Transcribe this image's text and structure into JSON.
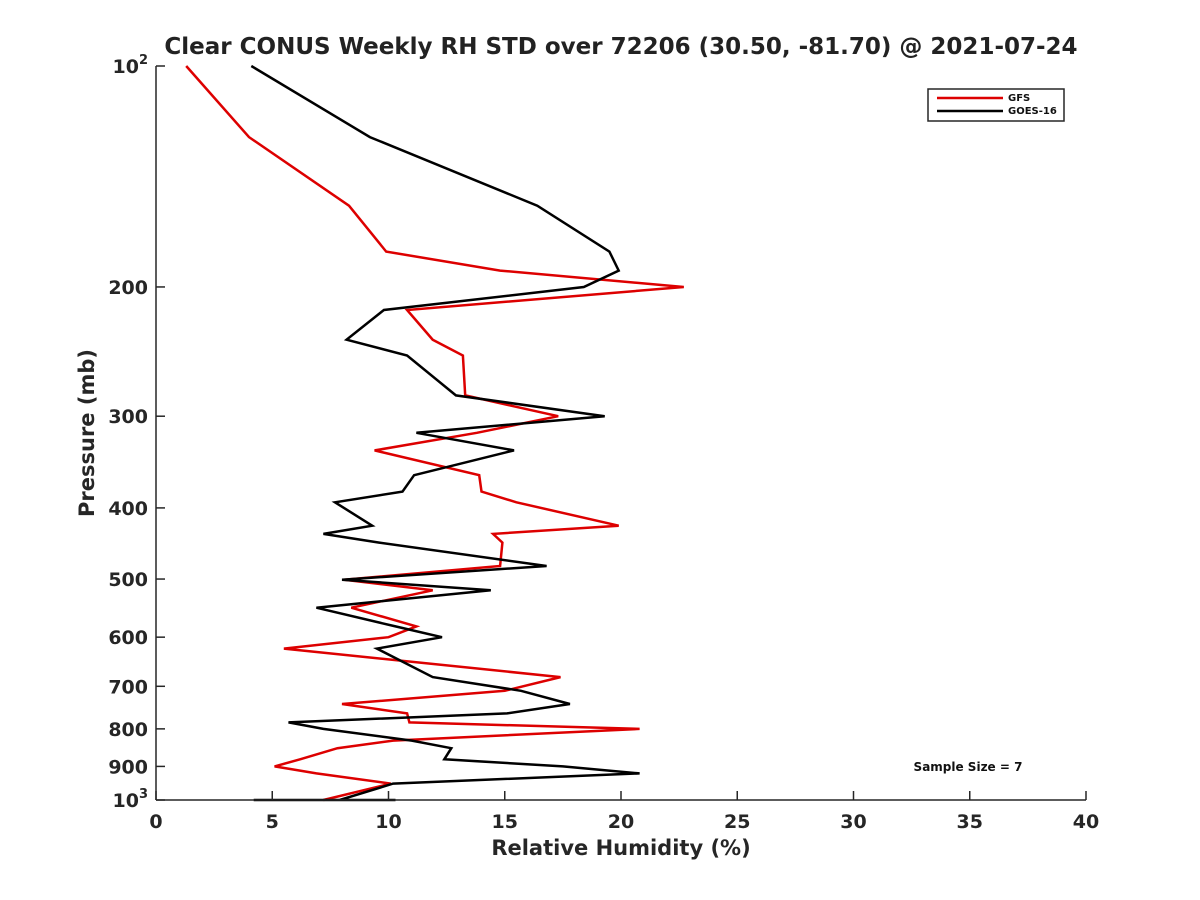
{
  "chart_data": {
    "type": "line",
    "title": "Clear CONUS Weekly RH STD over 72206 (30.50, -81.70) @ 2021-07-24",
    "xlabel": "Relative Humidity (%)",
    "ylabel": "Pressure (mb)",
    "xlim": [
      0,
      40
    ],
    "ylim": [
      100,
      1000
    ],
    "y_scale": "log",
    "y_reversed": true,
    "grid": false,
    "legend_position": "top-right",
    "x_ticks": [
      "0",
      "5",
      "10",
      "15",
      "20",
      "25",
      "30",
      "35",
      "40"
    ],
    "y_ticks": [
      {
        "value": 100,
        "base": "10",
        "exp": "2"
      },
      {
        "value": 200,
        "label": "200"
      },
      {
        "value": 300,
        "label": "300"
      },
      {
        "value": 400,
        "label": "400"
      },
      {
        "value": 500,
        "label": "500"
      },
      {
        "value": 600,
        "label": "600"
      },
      {
        "value": 700,
        "label": "700"
      },
      {
        "value": 800,
        "label": "800"
      },
      {
        "value": 900,
        "label": "900"
      },
      {
        "value": 1000,
        "base": "10",
        "exp": "3"
      }
    ],
    "annotation": "Sample Size = 7",
    "series": [
      {
        "name": "GFS",
        "color": "#dd0000",
        "points": [
          [
            1.3,
            100
          ],
          [
            4.0,
            125
          ],
          [
            8.3,
            155
          ],
          [
            9.9,
            179
          ],
          [
            14.8,
            190
          ],
          [
            22.7,
            200
          ],
          [
            10.8,
            215
          ],
          [
            11.9,
            236
          ],
          [
            13.2,
            248
          ],
          [
            13.3,
            281
          ],
          [
            17.3,
            300
          ],
          [
            13.8,
            316
          ],
          [
            9.4,
            334
          ],
          [
            13.9,
            361
          ],
          [
            14.0,
            380
          ],
          [
            15.5,
            393
          ],
          [
            19.9,
            423
          ],
          [
            14.5,
            434
          ],
          [
            14.9,
            446
          ],
          [
            14.8,
            480
          ],
          [
            8.1,
            501
          ],
          [
            11.9,
            518
          ],
          [
            8.4,
            547
          ],
          [
            11.2,
            580
          ],
          [
            10.0,
            600
          ],
          [
            5.5,
            622
          ],
          [
            17.4,
            680
          ],
          [
            15.0,
            710
          ],
          [
            8.0,
            740
          ],
          [
            10.8,
            762
          ],
          [
            10.9,
            784
          ],
          [
            20.8,
            800
          ],
          [
            10.2,
            830
          ],
          [
            7.8,
            850
          ],
          [
            6.2,
            880
          ],
          [
            5.1,
            900
          ],
          [
            6.9,
            920
          ],
          [
            10.1,
            950
          ],
          [
            7.2,
            1000
          ]
        ]
      },
      {
        "name": "GOES-16",
        "color": "#000000",
        "points": [
          [
            4.1,
            100
          ],
          [
            9.2,
            125
          ],
          [
            16.4,
            155
          ],
          [
            19.5,
            179
          ],
          [
            19.9,
            190
          ],
          [
            18.4,
            200
          ],
          [
            9.8,
            215
          ],
          [
            8.2,
            236
          ],
          [
            10.8,
            248
          ],
          [
            12.9,
            281
          ],
          [
            19.3,
            300
          ],
          [
            11.2,
            316
          ],
          [
            15.4,
            334
          ],
          [
            11.1,
            361
          ],
          [
            10.6,
            380
          ],
          [
            7.7,
            393
          ],
          [
            9.3,
            423
          ],
          [
            7.2,
            434
          ],
          [
            9.6,
            446
          ],
          [
            16.8,
            480
          ],
          [
            8.0,
            501
          ],
          [
            14.4,
            518
          ],
          [
            6.9,
            547
          ],
          [
            10.3,
            580
          ],
          [
            12.3,
            600
          ],
          [
            9.5,
            622
          ],
          [
            11.9,
            680
          ],
          [
            15.7,
            710
          ],
          [
            17.8,
            740
          ],
          [
            15.1,
            762
          ],
          [
            5.7,
            784
          ],
          [
            7.2,
            800
          ],
          [
            11.0,
            830
          ],
          [
            12.7,
            850
          ],
          [
            12.4,
            880
          ],
          [
            17.5,
            900
          ],
          [
            20.8,
            920
          ],
          [
            10.2,
            950
          ],
          [
            7.9,
            1000
          ],
          [
            6.9,
            1000
          ],
          [
            4.2,
            1000
          ],
          [
            7.8,
            1000
          ],
          [
            10.3,
            1000
          ],
          [
            5.0,
            1000
          ]
        ]
      }
    ]
  }
}
